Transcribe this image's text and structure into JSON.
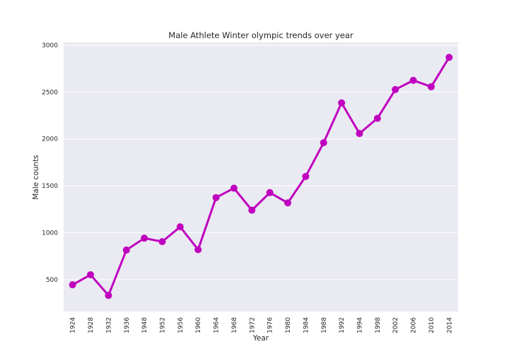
{
  "chart_data": {
    "type": "line",
    "title": "Male Athlete Winter olympic trends over year",
    "xlabel": "Year",
    "ylabel": "Male counts",
    "categories": [
      "1924",
      "1928",
      "1932",
      "1936",
      "1948",
      "1952",
      "1956",
      "1960",
      "1964",
      "1968",
      "1972",
      "1976",
      "1980",
      "1984",
      "1988",
      "1992",
      "1994",
      "1998",
      "2002",
      "2006",
      "2010",
      "2014"
    ],
    "series": [
      {
        "values": [
          445,
          552,
          332,
          815,
          942,
          905,
          1063,
          820,
          1375,
          1475,
          1240,
          1428,
          1318,
          1600,
          1960,
          2385,
          2058,
          2220,
          2527,
          2625,
          2557,
          2870
        ]
      }
    ],
    "ylim": [
      160,
      3030
    ],
    "yticks": [
      500,
      1000,
      1500,
      2000,
      2500,
      3000
    ],
    "grid": true,
    "line_color": "#bf00bf",
    "background_color": "#eaeaf2"
  }
}
